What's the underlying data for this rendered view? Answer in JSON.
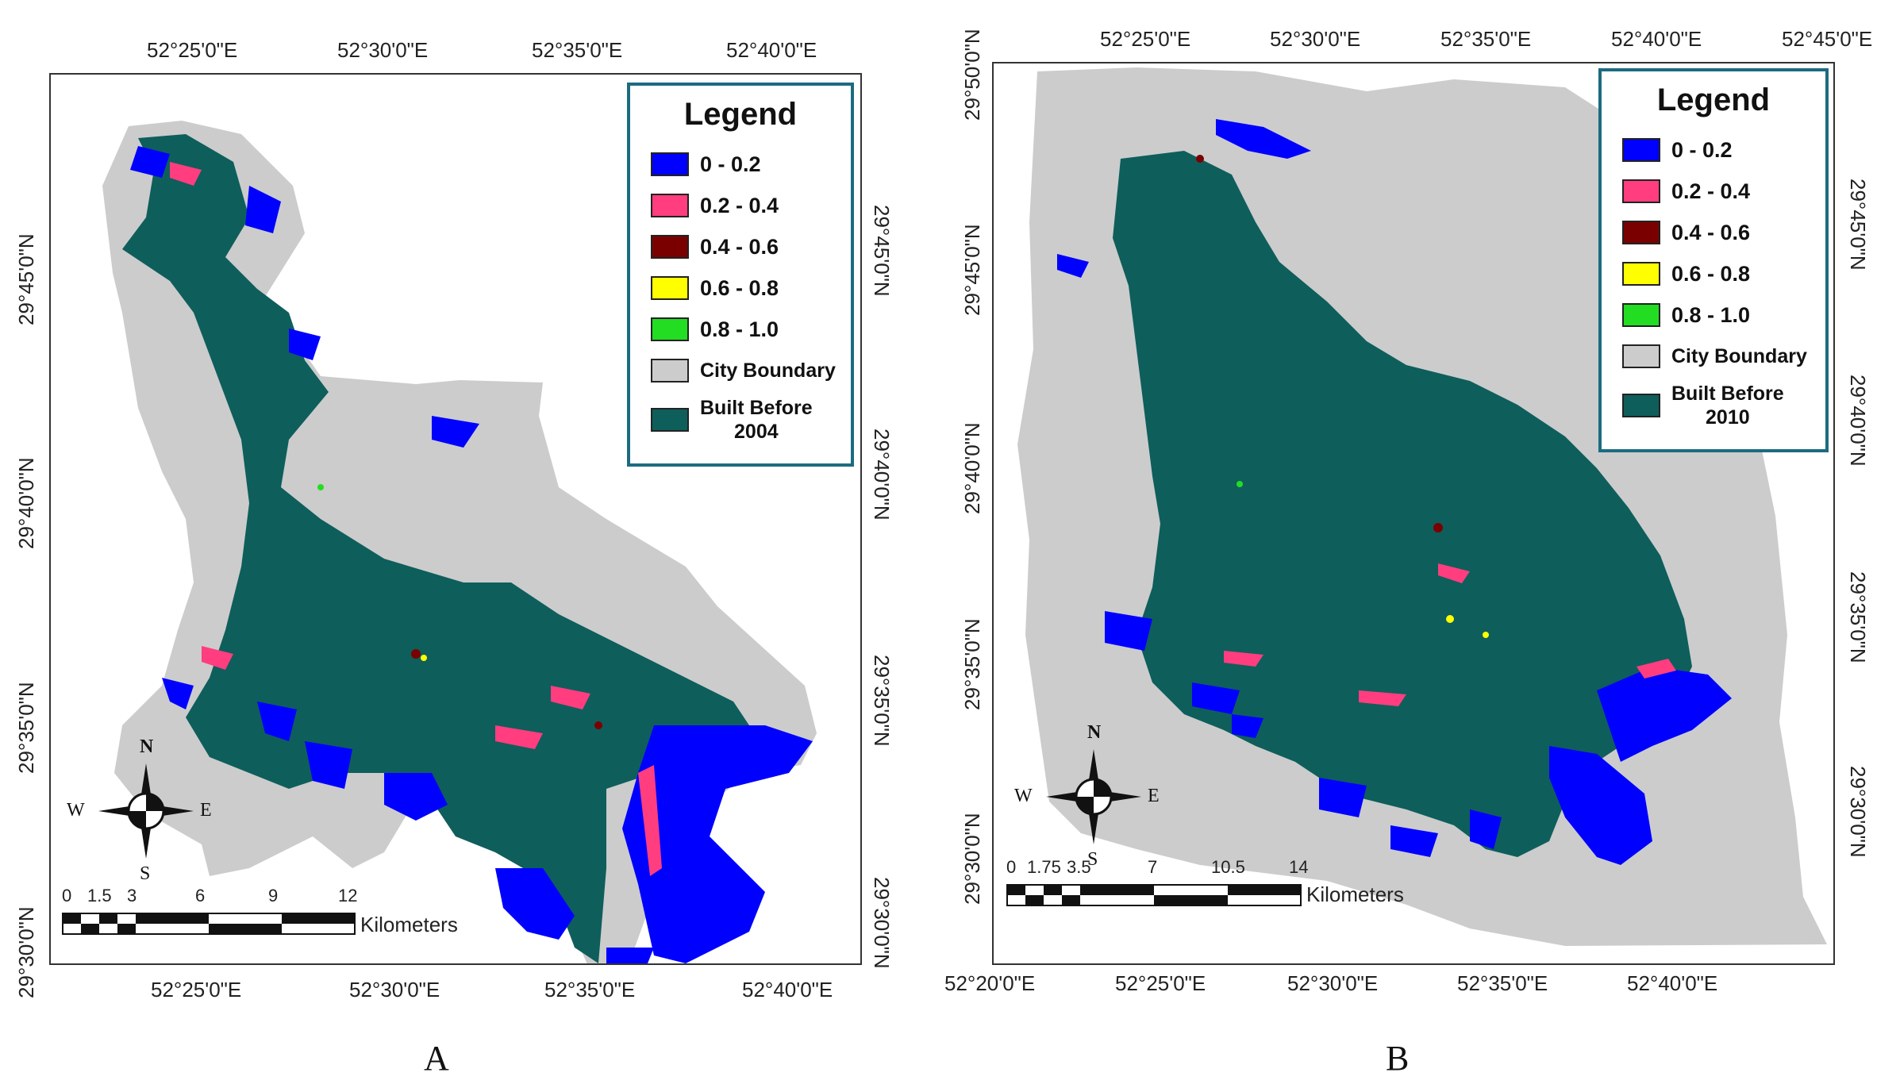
{
  "panels": [
    {
      "id": "A",
      "panel_label": "A",
      "top_ticks": [
        "52°25'0\"E",
        "52°30'0\"E",
        "52°35'0\"E",
        "52°40'0\"E"
      ],
      "bottom_ticks": [
        "52°25'0\"E",
        "52°30'0\"E",
        "52°35'0\"E",
        "52°40'0\"E"
      ],
      "left_ticks": [
        "29°45'0\"N",
        "29°40'0\"N",
        "29°35'0\"N",
        "29°30'0\"N"
      ],
      "right_ticks": [
        "29°45'0\"N",
        "29°40'0\"N",
        "29°35'0\"N",
        "29°30'0\"N"
      ],
      "legend": {
        "title": "Legend",
        "items": [
          {
            "label": "0 - 0.2",
            "color": "#0000ff"
          },
          {
            "label": "0.2 - 0.4",
            "color": "#ff3d7f"
          },
          {
            "label": "0.4 - 0.6",
            "color": "#7a0000"
          },
          {
            "label": "0.6 - 0.8",
            "color": "#ffff00"
          },
          {
            "label": "0.8 - 1.0",
            "color": "#22dd22"
          },
          {
            "label": "City Boundary",
            "color": "#cccccc"
          },
          {
            "label": "Built Before",
            "label2": "2004",
            "color": "#0e5e5c"
          }
        ]
      },
      "scale_bar": {
        "ticks": [
          "0",
          "1.5",
          "3",
          "6",
          "9",
          "12"
        ],
        "unit": "Kilometers"
      },
      "compass": {
        "n": "N",
        "s": "S",
        "e": "E",
        "w": "W"
      }
    },
    {
      "id": "B",
      "panel_label": "B",
      "top_ticks": [
        "52°25'0\"E",
        "52°30'0\"E",
        "52°35'0\"E",
        "52°40'0\"E",
        "52°45'0\"E"
      ],
      "bottom_ticks": [
        "52°20'0\"E",
        "52°25'0\"E",
        "52°30'0\"E",
        "52°35'0\"E",
        "52°40'0\"E"
      ],
      "left_ticks": [
        "29°50'0\"N",
        "29°45'0\"N",
        "29°40'0\"N",
        "29°35'0\"N",
        "29°30'0\"N"
      ],
      "right_ticks": [
        "29°45'0\"N",
        "29°40'0\"N",
        "29°35'0\"N",
        "29°30'0\"N"
      ],
      "legend": {
        "title": "Legend",
        "items": [
          {
            "label": "0 - 0.2",
            "color": "#0000ff"
          },
          {
            "label": "0.2 - 0.4",
            "color": "#ff3d7f"
          },
          {
            "label": "0.4 - 0.6",
            "color": "#7a0000"
          },
          {
            "label": "0.6 - 0.8",
            "color": "#ffff00"
          },
          {
            "label": "0.8 - 1.0",
            "color": "#22dd22"
          },
          {
            "label": "City Boundary",
            "color": "#cccccc"
          },
          {
            "label": "Built Before",
            "label2": "2010",
            "color": "#0e5e5c"
          }
        ]
      },
      "scale_bar": {
        "ticks": [
          "0",
          "1.75",
          "3.5",
          "7",
          "10.5",
          "14"
        ],
        "unit": "Kilometers"
      },
      "compass": {
        "n": "N",
        "s": "S",
        "e": "E",
        "w": "W"
      }
    }
  ],
  "colors": {
    "boundary": "#cccccc",
    "built": "#0e5e5c",
    "blue": "#0000ff",
    "pink": "#ff3d7f",
    "maroon": "#7a0000",
    "yellow": "#ffff00",
    "green": "#22dd22"
  }
}
